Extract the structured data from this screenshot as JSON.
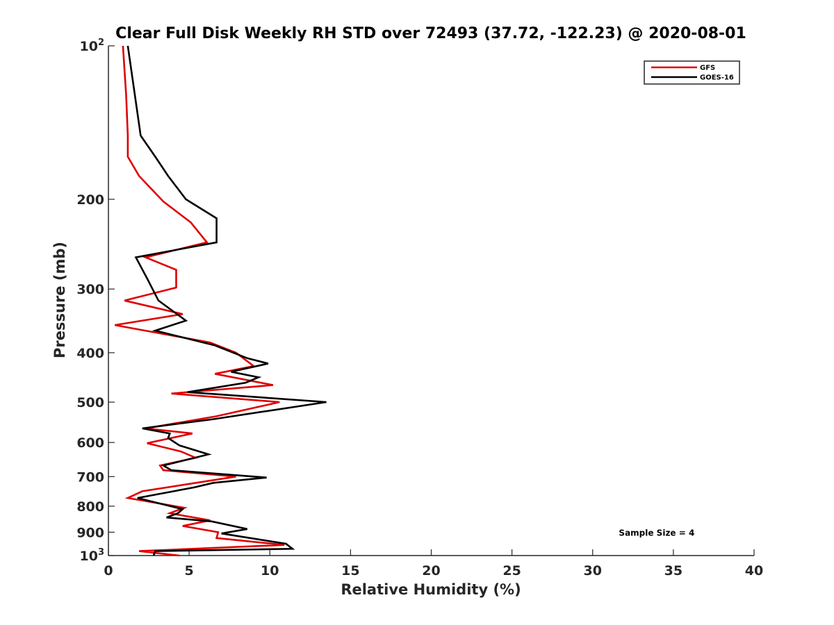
{
  "chart_data": {
    "type": "line",
    "title": "Clear Full Disk Weekly RH STD over 72493 (37.72, -122.23) @ 2020-08-01",
    "xlabel": "Relative Humidity (%)",
    "ylabel": "Pressure (mb)",
    "xlim": [
      0,
      40
    ],
    "ylim": [
      100,
      1000
    ],
    "yscale": "log",
    "y_reversed": true,
    "xticks": [
      0,
      5,
      10,
      15,
      20,
      25,
      30,
      35,
      40
    ],
    "xtick_labels": [
      "0",
      "5",
      "10",
      "15",
      "20",
      "25",
      "30",
      "35",
      "40"
    ],
    "yticks": [
      100,
      200,
      300,
      400,
      500,
      600,
      700,
      800,
      900,
      1000
    ],
    "ytick_labels": [
      {
        "base": "10",
        "sup": "2"
      },
      {
        "base": "200"
      },
      {
        "base": "300"
      },
      {
        "base": "400"
      },
      {
        "base": "500"
      },
      {
        "base": "600"
      },
      {
        "base": "700"
      },
      {
        "base": "800"
      },
      {
        "base": "900"
      },
      {
        "base": "10",
        "sup": "3"
      }
    ],
    "grid": false,
    "legend_position": "top-right",
    "series": [
      {
        "name": "GFS",
        "color": "#e00000",
        "points": [
          [
            0.9,
            100
          ],
          [
            1.1,
            125
          ],
          [
            1.2,
            150
          ],
          [
            1.2,
            165
          ],
          [
            1.9,
            180
          ],
          [
            3.4,
            202
          ],
          [
            5.1,
            222
          ],
          [
            6.1,
            243
          ],
          [
            2.3,
            260
          ],
          [
            4.2,
            275
          ],
          [
            4.2,
            298
          ],
          [
            1.0,
            316
          ],
          [
            4.6,
            336
          ],
          [
            0.4,
            353
          ],
          [
            6.3,
            382
          ],
          [
            7.9,
            400
          ],
          [
            9.0,
            425
          ],
          [
            6.6,
            440
          ],
          [
            10.2,
            463
          ],
          [
            3.9,
            481
          ],
          [
            10.6,
            500
          ],
          [
            6.7,
            533
          ],
          [
            2.3,
            563
          ],
          [
            5.2,
            576
          ],
          [
            2.4,
            602
          ],
          [
            4.5,
            625
          ],
          [
            5.4,
            643
          ],
          [
            3.2,
            666
          ],
          [
            3.4,
            680
          ],
          [
            7.9,
            700
          ],
          [
            2.1,
            748
          ],
          [
            1.2,
            771
          ],
          [
            4.7,
            806
          ],
          [
            3.8,
            826
          ],
          [
            6.3,
            853
          ],
          [
            4.6,
            875
          ],
          [
            6.8,
            900
          ],
          [
            6.7,
            924
          ],
          [
            10.9,
            953
          ],
          [
            1.9,
            980
          ],
          [
            4.4,
            1000
          ]
        ]
      },
      {
        "name": "GOES-16",
        "color": "#000000",
        "points": [
          [
            1.2,
            100
          ],
          [
            2.0,
            150
          ],
          [
            2.9,
            165
          ],
          [
            3.7,
            180
          ],
          [
            4.8,
            200
          ],
          [
            6.7,
            218
          ],
          [
            6.7,
            243
          ],
          [
            1.7,
            260
          ],
          [
            2.4,
            286
          ],
          [
            3.1,
            316
          ],
          [
            4.8,
            346
          ],
          [
            2.9,
            362
          ],
          [
            6.6,
            387
          ],
          [
            8.6,
            410
          ],
          [
            9.9,
            420
          ],
          [
            7.6,
            436
          ],
          [
            9.3,
            447
          ],
          [
            8.5,
            458
          ],
          [
            4.9,
            478
          ],
          [
            13.5,
            500
          ],
          [
            6.5,
            540
          ],
          [
            2.1,
            563
          ],
          [
            3.8,
            576
          ],
          [
            3.7,
            588
          ],
          [
            4.4,
            608
          ],
          [
            6.2,
            633
          ],
          [
            3.4,
            666
          ],
          [
            3.9,
            680
          ],
          [
            9.8,
            703
          ],
          [
            6.5,
            720
          ],
          [
            5.3,
            735
          ],
          [
            1.8,
            771
          ],
          [
            4.6,
            811
          ],
          [
            4.3,
            826
          ],
          [
            3.6,
            842
          ],
          [
            6.4,
            857
          ],
          [
            8.6,
            887
          ],
          [
            7.0,
            905
          ],
          [
            11.0,
            948
          ],
          [
            11.4,
            970
          ],
          [
            2.9,
            980
          ],
          [
            2.8,
            1000
          ]
        ]
      }
    ],
    "annotations": [
      {
        "text": "Sample Size = 4",
        "x": 35,
        "y": 900
      }
    ]
  }
}
